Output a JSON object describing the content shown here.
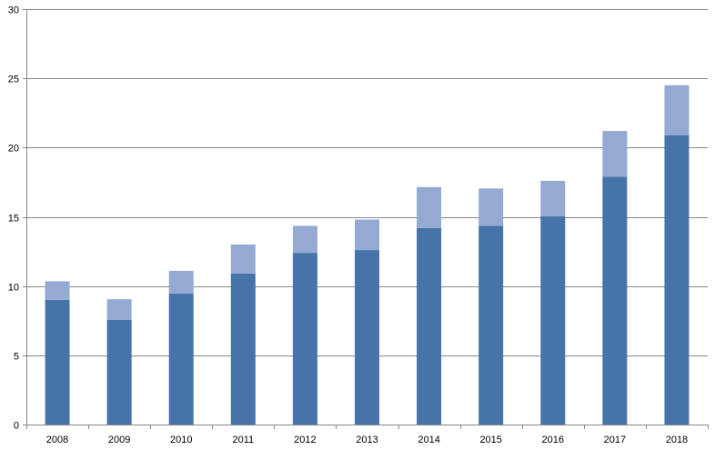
{
  "chart_data": {
    "type": "bar",
    "stacked": true,
    "title": "",
    "xlabel": "",
    "ylabel": "",
    "ylim": [
      0,
      30
    ],
    "yticks": [
      "0",
      "5",
      "10",
      "15",
      "20",
      "25",
      "30"
    ],
    "grid": true,
    "categories": [
      "2008",
      "2009",
      "2010",
      "2011",
      "2012",
      "2013",
      "2014",
      "2015",
      "2016",
      "2017",
      "2018"
    ],
    "series": [
      {
        "color": "#4674A8",
        "values": [
          9.0,
          7.55,
          9.45,
          10.9,
          12.4,
          12.6,
          14.2,
          14.35,
          15.05,
          17.9,
          20.9
        ]
      },
      {
        "color": "#95AAD3",
        "values": [
          1.35,
          1.5,
          1.65,
          2.1,
          1.95,
          2.2,
          2.95,
          2.7,
          2.55,
          3.3,
          3.6
        ]
      }
    ],
    "colors": {
      "grid": "#888888",
      "axis": "#888888",
      "background": "#ffffff"
    }
  }
}
